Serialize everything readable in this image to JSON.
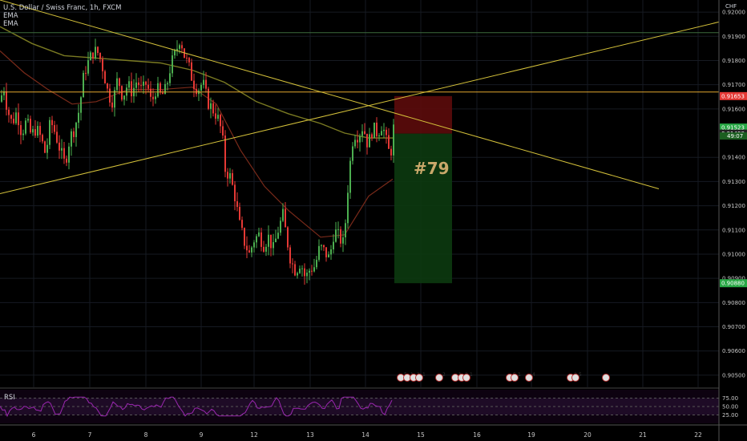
{
  "legend": {
    "symbol_line": "U.S. Dollar / Swiss Franc, 1h, FXCM",
    "indicator1": "EMA",
    "indicator2": "EMA"
  },
  "currency": "CHF",
  "rsi_label": "RSI",
  "trade_label": "#79",
  "colors": {
    "up": "#4caf50",
    "down": "#e53935",
    "trendline": "#d4c13a",
    "horizontal_level": "#e0a62e",
    "ema_slow": "#7a7a22",
    "ema_fast": "#7a2a1a",
    "rsi_line": "#9b27b0",
    "stop_zone": "#5c0b0b",
    "target_zone": "#0c3a10",
    "price_tag_red": "#e53935",
    "price_tag_green": "#28a745"
  },
  "chart_data": {
    "type": "candlestick",
    "symbol": "U.S. Dollar / Swiss Franc",
    "timeframe": "1h",
    "source": "FXCM",
    "ylim": [
      0.9045,
      0.9205
    ],
    "y_ticks": [
      "0.92000",
      "0.91900",
      "0.91800",
      "0.91700",
      "0.91600",
      "0.91400",
      "0.91300",
      "0.91200",
      "0.91100",
      "0.91000",
      "0.90900",
      "0.90800",
      "0.90700",
      "0.90600",
      "0.90500"
    ],
    "x_ticks": [
      {
        "day": 6,
        "label": "6"
      },
      {
        "day": 7,
        "label": "7"
      },
      {
        "day": 8,
        "label": "8"
      },
      {
        "day": 9,
        "label": "9"
      },
      {
        "day": 12,
        "label": "12"
      },
      {
        "day": 13,
        "label": "13"
      },
      {
        "day": 14,
        "label": "14"
      },
      {
        "day": 15,
        "label": "15"
      },
      {
        "day": 16,
        "label": "16"
      },
      {
        "day": 19,
        "label": "19"
      },
      {
        "day": 20,
        "label": "20"
      },
      {
        "day": 21,
        "label": "21"
      },
      {
        "day": 22,
        "label": "22"
      }
    ],
    "price_tags": [
      {
        "value": 0.91653,
        "label": "0.91653",
        "color": "red"
      },
      {
        "value": 0.91523,
        "label": "0.91523",
        "color": "green"
      },
      {
        "value": 0.91498,
        "label": "0.91498",
        "color": "dark"
      },
      {
        "value": 0.9088,
        "label": "0.90880",
        "color": "green"
      }
    ],
    "countdown": "49:07",
    "close_path": [
      [
        0,
        0.9163
      ],
      [
        3,
        0.9171
      ],
      [
        8,
        0.916
      ],
      [
        14,
        0.9154
      ],
      [
        20,
        0.9159
      ],
      [
        26,
        0.915
      ],
      [
        32,
        0.9155
      ],
      [
        38,
        0.9149
      ],
      [
        44,
        0.9152
      ],
      [
        50,
        0.9148
      ],
      [
        56,
        0.9141
      ],
      [
        62,
        0.9155
      ],
      [
        68,
        0.915
      ],
      [
        74,
        0.9143
      ],
      [
        80,
        0.9137
      ],
      [
        86,
        0.9148
      ],
      [
        92,
        0.9152
      ],
      [
        98,
        0.916
      ],
      [
        104,
        0.9175
      ],
      [
        110,
        0.918
      ],
      [
        116,
        0.9184
      ],
      [
        122,
        0.9183
      ],
      [
        128,
        0.9176
      ],
      [
        134,
        0.9166
      ],
      [
        140,
        0.9163
      ],
      [
        146,
        0.9173
      ],
      [
        152,
        0.9165
      ],
      [
        158,
        0.917
      ],
      [
        164,
        0.9167
      ],
      [
        170,
        0.9172
      ],
      [
        176,
        0.9167
      ],
      [
        182,
        0.9171
      ],
      [
        188,
        0.9162
      ],
      [
        194,
        0.9169
      ],
      [
        200,
        0.9165
      ],
      [
        206,
        0.9168
      ],
      [
        212,
        0.9178
      ],
      [
        218,
        0.9183
      ],
      [
        224,
        0.919
      ],
      [
        228,
        0.9183
      ],
      [
        234,
        0.9178
      ],
      [
        240,
        0.9171
      ],
      [
        246,
        0.9168
      ],
      [
        252,
        0.9171
      ],
      [
        258,
        0.9163
      ],
      [
        264,
        0.916
      ],
      [
        270,
        0.9157
      ],
      [
        276,
        0.915
      ],
      [
        280,
        0.9135
      ],
      [
        286,
        0.9132
      ],
      [
        292,
        0.9124
      ],
      [
        298,
        0.9112
      ],
      [
        304,
        0.9105
      ],
      [
        310,
        0.91
      ],
      [
        316,
        0.9106
      ],
      [
        322,
        0.9108
      ],
      [
        328,
        0.9104
      ],
      [
        334,
        0.9107
      ],
      [
        340,
        0.9102
      ],
      [
        346,
        0.911
      ],
      [
        352,
        0.9116
      ],
      [
        356,
        0.9108
      ],
      [
        362,
        0.9097
      ],
      [
        368,
        0.9093
      ],
      [
        374,
        0.9097
      ],
      [
        380,
        0.909
      ],
      [
        386,
        0.9094
      ],
      [
        392,
        0.9095
      ],
      [
        398,
        0.9103
      ],
      [
        404,
        0.9101
      ],
      [
        410,
        0.9098
      ],
      [
        416,
        0.911
      ],
      [
        422,
        0.9107
      ],
      [
        428,
        0.9104
      ],
      [
        434,
        0.9132
      ],
      [
        440,
        0.915
      ],
      [
        446,
        0.9149
      ],
      [
        452,
        0.9153
      ],
      [
        458,
        0.9145
      ],
      [
        464,
        0.9152
      ],
      [
        470,
        0.915
      ],
      [
        476,
        0.9154
      ],
      [
        482,
        0.9145
      ],
      [
        486,
        0.914
      ],
      [
        490,
        0.9152
      ]
    ],
    "ema_slow": [
      [
        0,
        0.9194
      ],
      [
        40,
        0.9187
      ],
      [
        80,
        0.9182
      ],
      [
        120,
        0.9181
      ],
      [
        160,
        0.918
      ],
      [
        200,
        0.9179
      ],
      [
        240,
        0.9176
      ],
      [
        280,
        0.9171
      ],
      [
        320,
        0.9163
      ],
      [
        360,
        0.9158
      ],
      [
        400,
        0.9154
      ],
      [
        430,
        0.915
      ],
      [
        460,
        0.9148
      ],
      [
        490,
        0.9148
      ]
    ],
    "ema_fast": [
      [
        0,
        0.9184
      ],
      [
        30,
        0.9175
      ],
      [
        60,
        0.9168
      ],
      [
        90,
        0.9162
      ],
      [
        120,
        0.9163
      ],
      [
        160,
        0.9168
      ],
      [
        200,
        0.9168
      ],
      [
        240,
        0.9169
      ],
      [
        270,
        0.9162
      ],
      [
        300,
        0.9143
      ],
      [
        330,
        0.9128
      ],
      [
        360,
        0.9118
      ],
      [
        400,
        0.9107
      ],
      [
        430,
        0.9108
      ],
      [
        460,
        0.9124
      ],
      [
        490,
        0.9131
      ]
    ],
    "trendlines": [
      {
        "from": [
          0,
          0.9205
        ],
        "to": [
          822,
          0.9127
        ]
      },
      {
        "from": [
          0,
          0.9125
        ],
        "to": [
          898,
          0.9196
        ]
      }
    ],
    "horizontal_levels": [
      0.9167,
      0.91915
    ],
    "position": {
      "type": "short",
      "x_start": 492,
      "x_end": 564,
      "entry": 0.91498,
      "stop": 0.91653,
      "target": 0.9088
    },
    "rsi": {
      "levels": [
        75,
        50,
        25
      ],
      "tick_labels": [
        "75.00",
        "50.00",
        "25.00"
      ],
      "ylim": [
        0,
        100
      ]
    },
    "event_markers": [
      {
        "x": 500,
        "label": "5"
      },
      {
        "x": 508,
        "label": "1"
      },
      {
        "x": 516,
        "label": "2"
      },
      {
        "x": 523,
        "label": "1"
      },
      {
        "x": 548,
        "label": "2"
      },
      {
        "x": 568,
        "label": "1"
      },
      {
        "x": 576,
        "label": "2"
      },
      {
        "x": 582,
        "label": "1"
      },
      {
        "x": 636,
        "label": "5"
      },
      {
        "x": 642,
        "label": "1"
      },
      {
        "x": 660,
        "label": "4"
      },
      {
        "x": 712,
        "label": "2"
      },
      {
        "x": 718,
        "label": "5"
      },
      {
        "x": 756,
        "label": ""
      }
    ]
  }
}
